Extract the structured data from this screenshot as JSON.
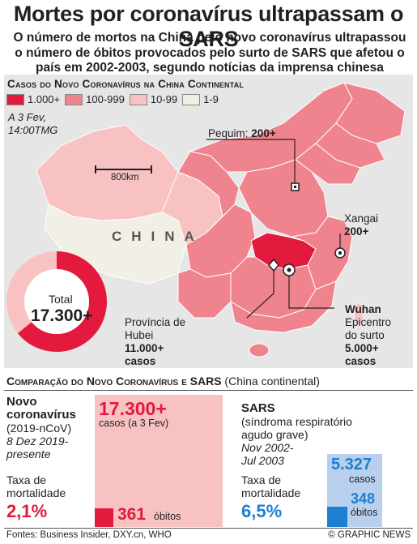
{
  "title": "Mortes por coronavírus ultrapassam o SARS",
  "subtitle": "O número de mortos na China pelo novo coronavírus ultrapassou o número de óbitos provocados pelo surto de SARS que afetou o país em 2002-2003, segundo notícias da imprensa chinesa",
  "map": {
    "heading": "Casos do Novo Coronavírus na China Continental",
    "legend": [
      {
        "label": "1.000+",
        "color": "#e3193e"
      },
      {
        "label": "100-999",
        "color": "#f0848e"
      },
      {
        "label": "10-99",
        "color": "#f8c2c2"
      },
      {
        "label": "1-9",
        "color": "#f2efe6"
      }
    ],
    "date_line1": "A 3 Fev,",
    "date_line2": "14:00TMG",
    "scale": "800km",
    "country": "CHINA",
    "beijing_name": "Pequim:",
    "beijing_count": "200+",
    "shanghai_name": "Xangai",
    "shanghai_count": "200+",
    "wuhan_name": "Wuhan",
    "wuhan_line2": "Epicentro",
    "wuhan_line3": "do surto",
    "wuhan_line4": "5.000+",
    "wuhan_line5": "casos",
    "hubei_line1": "Província de",
    "hubei_line2": "Hubei",
    "hubei_line3": "11.000+",
    "hubei_line4": "casos",
    "total_label": "Total",
    "total_value": "17.300+",
    "total_share_hubei": 0.64
  },
  "comparison": {
    "heading_caps": "Comparação do Novo Coronavírus e SARS",
    "heading_rest": " (China continental)",
    "ncov": {
      "name1": "Novo",
      "name2": "coronavírus",
      "code": "(2019-nCoV)",
      "date1": "8 Dez 2019-",
      "date2": "presente",
      "rate_label1": "Taxa de",
      "rate_label2": "mortalidade",
      "rate": "2,1%",
      "cases_value": "17.300+",
      "cases_label": "casos (a 3 Fev)",
      "deaths_value": "361",
      "deaths_label": "óbitos",
      "color": "#e3193e"
    },
    "sars": {
      "name": "SARS",
      "desc1": "(síndroma respiratório",
      "desc2": "agudo grave)",
      "date1": "Nov 2002-",
      "date2": "Jul 2003",
      "rate_label1": "Taxa de",
      "rate_label2": "mortalidade",
      "rate": "6,5%",
      "cases_value": "5.327",
      "cases_label": "casos",
      "deaths_value": "348",
      "deaths_label": "óbitos",
      "color": "#1c7fd1"
    }
  },
  "footer": {
    "sources": "Fontes: Business Insider, DXY.cn, WHO",
    "credit": "© GRAPHIC NEWS"
  }
}
